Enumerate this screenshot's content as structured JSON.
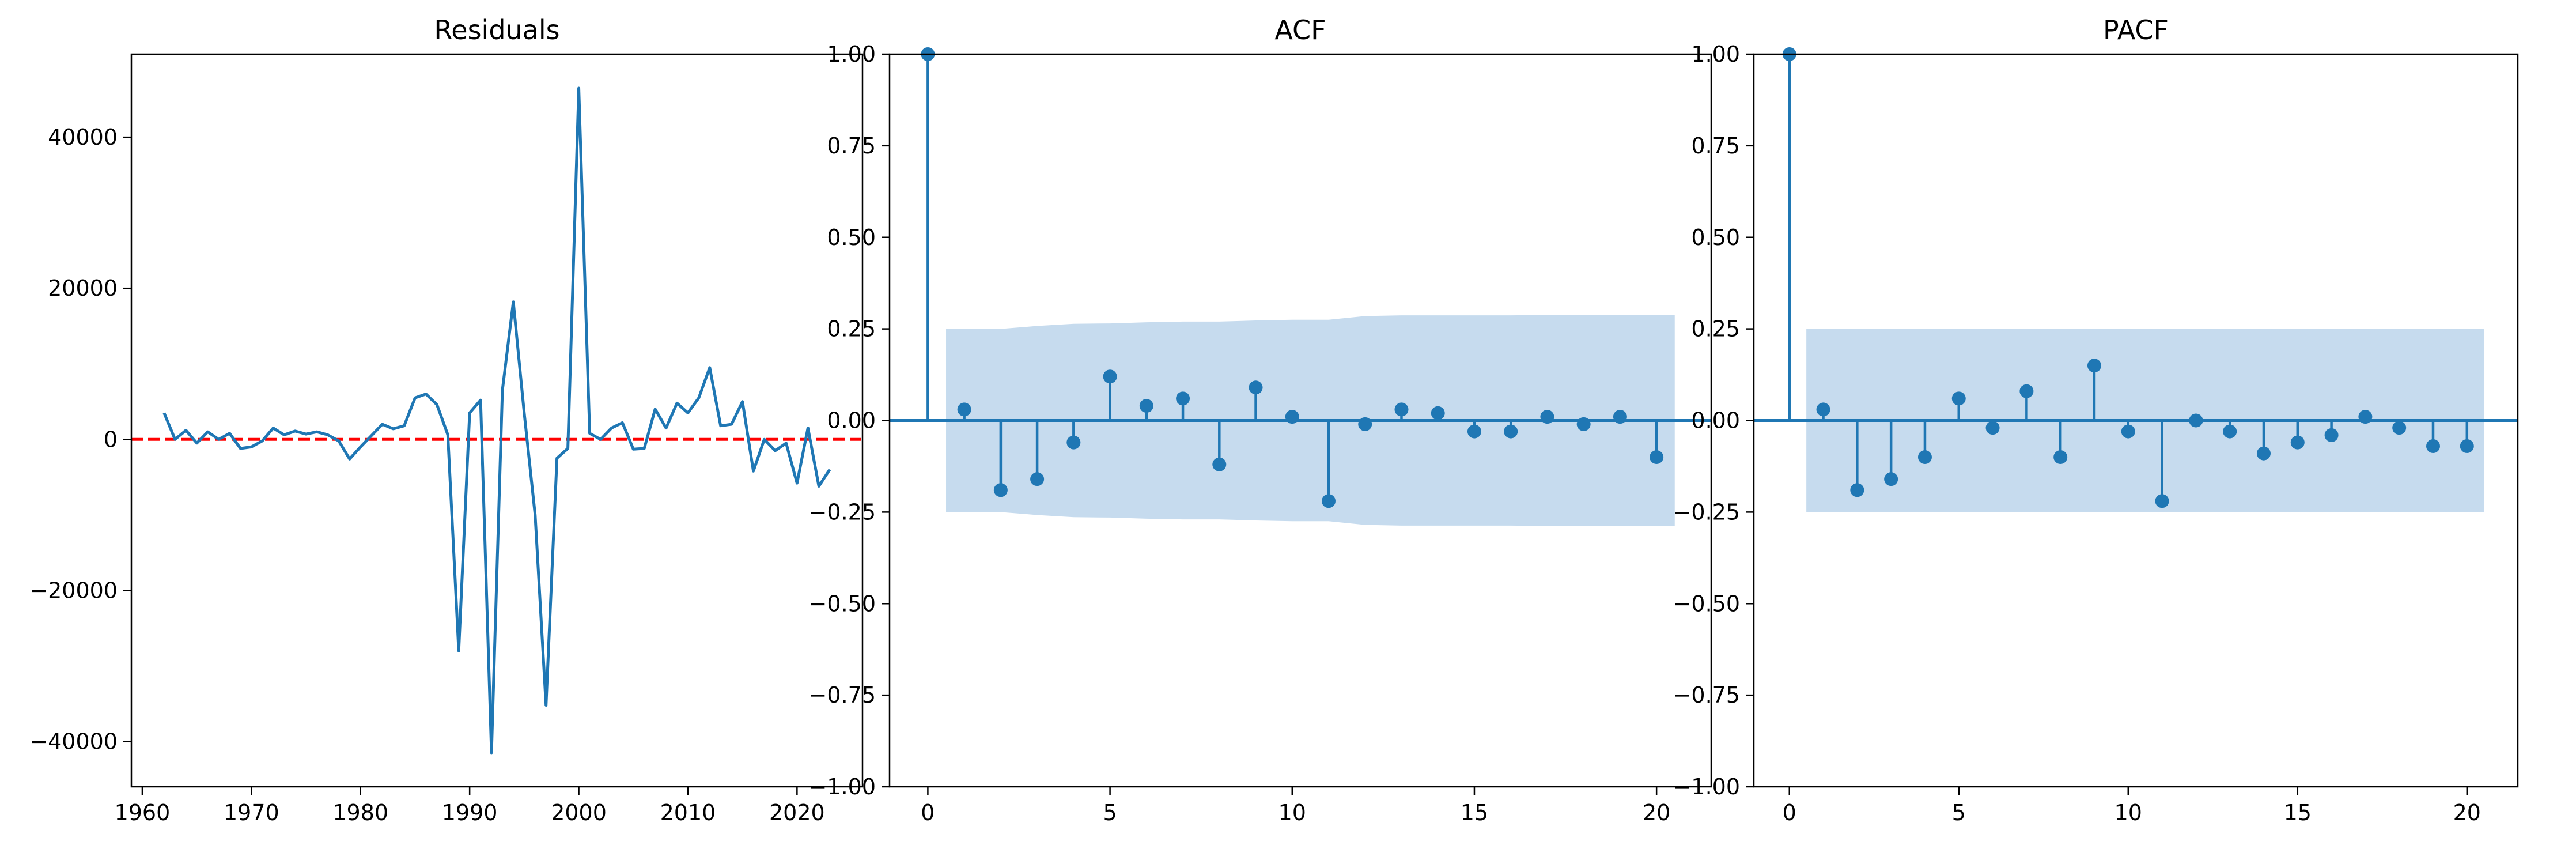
{
  "colors": {
    "line": "#1f77b4",
    "zero_line": "#ff0000",
    "conf_band": "#c6dbee",
    "axes": "#000000"
  },
  "chart_data": [
    {
      "type": "line",
      "title": "Residuals",
      "xlim": [
        1959,
        2026
      ],
      "ylim": [
        -46000,
        51000
      ],
      "xticks": [
        1960,
        1970,
        1980,
        1990,
        2000,
        2010,
        2020
      ],
      "xtick_labels": [
        "1960",
        "1970",
        "1980",
        "1990",
        "2000",
        "2010",
        "2020"
      ],
      "yticks": [
        -40000,
        -20000,
        0,
        20000,
        40000
      ],
      "ytick_labels": [
        "−40000",
        "−20000",
        "0",
        "20000",
        "40000"
      ],
      "reference_line": {
        "y": 0,
        "style": "dashed",
        "color": "red"
      },
      "x": [
        1962,
        1963,
        1964,
        1965,
        1966,
        1967,
        1968,
        1969,
        1970,
        1971,
        1972,
        1973,
        1974,
        1975,
        1976,
        1977,
        1978,
        1979,
        1980,
        1981,
        1982,
        1983,
        1984,
        1985,
        1986,
        1987,
        1988,
        1989,
        1990,
        1991,
        1992,
        1993,
        1994,
        1995,
        1996,
        1997,
        1998,
        1999,
        2000,
        2001,
        2002,
        2003,
        2004,
        2005,
        2006,
        2007,
        2008,
        2009,
        2010,
        2011,
        2012,
        2013,
        2014,
        2015,
        2016,
        2017,
        2018,
        2019,
        2020,
        2021,
        2022,
        2023
      ],
      "y": [
        3500,
        0,
        1200,
        -500,
        1000,
        0,
        800,
        -1200,
        -1000,
        -200,
        1500,
        600,
        1100,
        700,
        1000,
        600,
        -200,
        -2600,
        -1000,
        500,
        2000,
        1400,
        1800,
        5500,
        6000,
        4600,
        600,
        -28000,
        3500,
        5200,
        -41500,
        6500,
        18200,
        3500,
        -10000,
        -35200,
        -2500,
        -1200,
        46500,
        800,
        0,
        1500,
        2200,
        -1300,
        -1200,
        4000,
        1500,
        4800,
        3500,
        5500,
        9500,
        1800,
        2000,
        5000,
        -4200,
        0,
        -1500,
        -500,
        -5800,
        1500,
        -6200,
        -4000
      ]
    },
    {
      "type": "stem",
      "title": "ACF",
      "xlim": [
        -1.05,
        21.5
      ],
      "ylim": [
        -1.0,
        1.0
      ],
      "xticks": [
        0,
        5,
        10,
        15,
        20
      ],
      "xtick_labels": [
        "0",
        "5",
        "10",
        "15",
        "20"
      ],
      "yticks": [
        -1.0,
        -0.75,
        -0.5,
        -0.25,
        0.0,
        0.25,
        0.5,
        0.75,
        1.0
      ],
      "ytick_labels": [
        "−1.00",
        "−0.75",
        "−0.50",
        "−0.25",
        "0.00",
        "0.25",
        "0.50",
        "0.75",
        "1.00"
      ],
      "lags": [
        0,
        1,
        2,
        3,
        4,
        5,
        6,
        7,
        8,
        9,
        10,
        11,
        12,
        13,
        14,
        15,
        16,
        17,
        18,
        19,
        20
      ],
      "values": [
        1.0,
        0.03,
        -0.19,
        -0.16,
        -0.06,
        0.12,
        0.04,
        0.06,
        -0.12,
        0.09,
        0.01,
        -0.22,
        -0.01,
        0.03,
        0.02,
        -0.03,
        -0.03,
        0.01,
        -0.01,
        0.01,
        -0.1
      ],
      "confidence_band": {
        "x": [
          0.5,
          1,
          2,
          3,
          4,
          5,
          6,
          7,
          8,
          9,
          10,
          11,
          12,
          13,
          14,
          15,
          16,
          17,
          18,
          19,
          20,
          20.5
        ],
        "upper": [
          0.25,
          0.25,
          0.25,
          0.258,
          0.264,
          0.265,
          0.268,
          0.27,
          0.27,
          0.273,
          0.275,
          0.275,
          0.285,
          0.287,
          0.287,
          0.287,
          0.287,
          0.288,
          0.288,
          0.288,
          0.288,
          0.288
        ]
      }
    },
    {
      "type": "stem",
      "title": "PACF",
      "xlim": [
        -1.05,
        21.5
      ],
      "ylim": [
        -1.0,
        1.0
      ],
      "xticks": [
        0,
        5,
        10,
        15,
        20
      ],
      "xtick_labels": [
        "0",
        "5",
        "10",
        "15",
        "20"
      ],
      "yticks": [
        -1.0,
        -0.75,
        -0.5,
        -0.25,
        0.0,
        0.25,
        0.5,
        0.75,
        1.0
      ],
      "ytick_labels": [
        "−1.00",
        "−0.75",
        "−0.50",
        "−0.25",
        "0.00",
        "0.25",
        "0.50",
        "0.75",
        "1.00"
      ],
      "lags": [
        0,
        1,
        2,
        3,
        4,
        5,
        6,
        7,
        8,
        9,
        10,
        11,
        12,
        13,
        14,
        15,
        16,
        17,
        18,
        19,
        20
      ],
      "values": [
        1.0,
        0.03,
        -0.19,
        -0.16,
        -0.1,
        0.06,
        -0.02,
        0.08,
        -0.1,
        0.15,
        -0.03,
        -0.22,
        0.0,
        -0.03,
        -0.09,
        -0.06,
        -0.04,
        0.01,
        -0.02,
        -0.07,
        -0.07
      ],
      "confidence_band": {
        "x": [
          0.5,
          20.5
        ],
        "upper": [
          0.25,
          0.25
        ]
      }
    }
  ]
}
